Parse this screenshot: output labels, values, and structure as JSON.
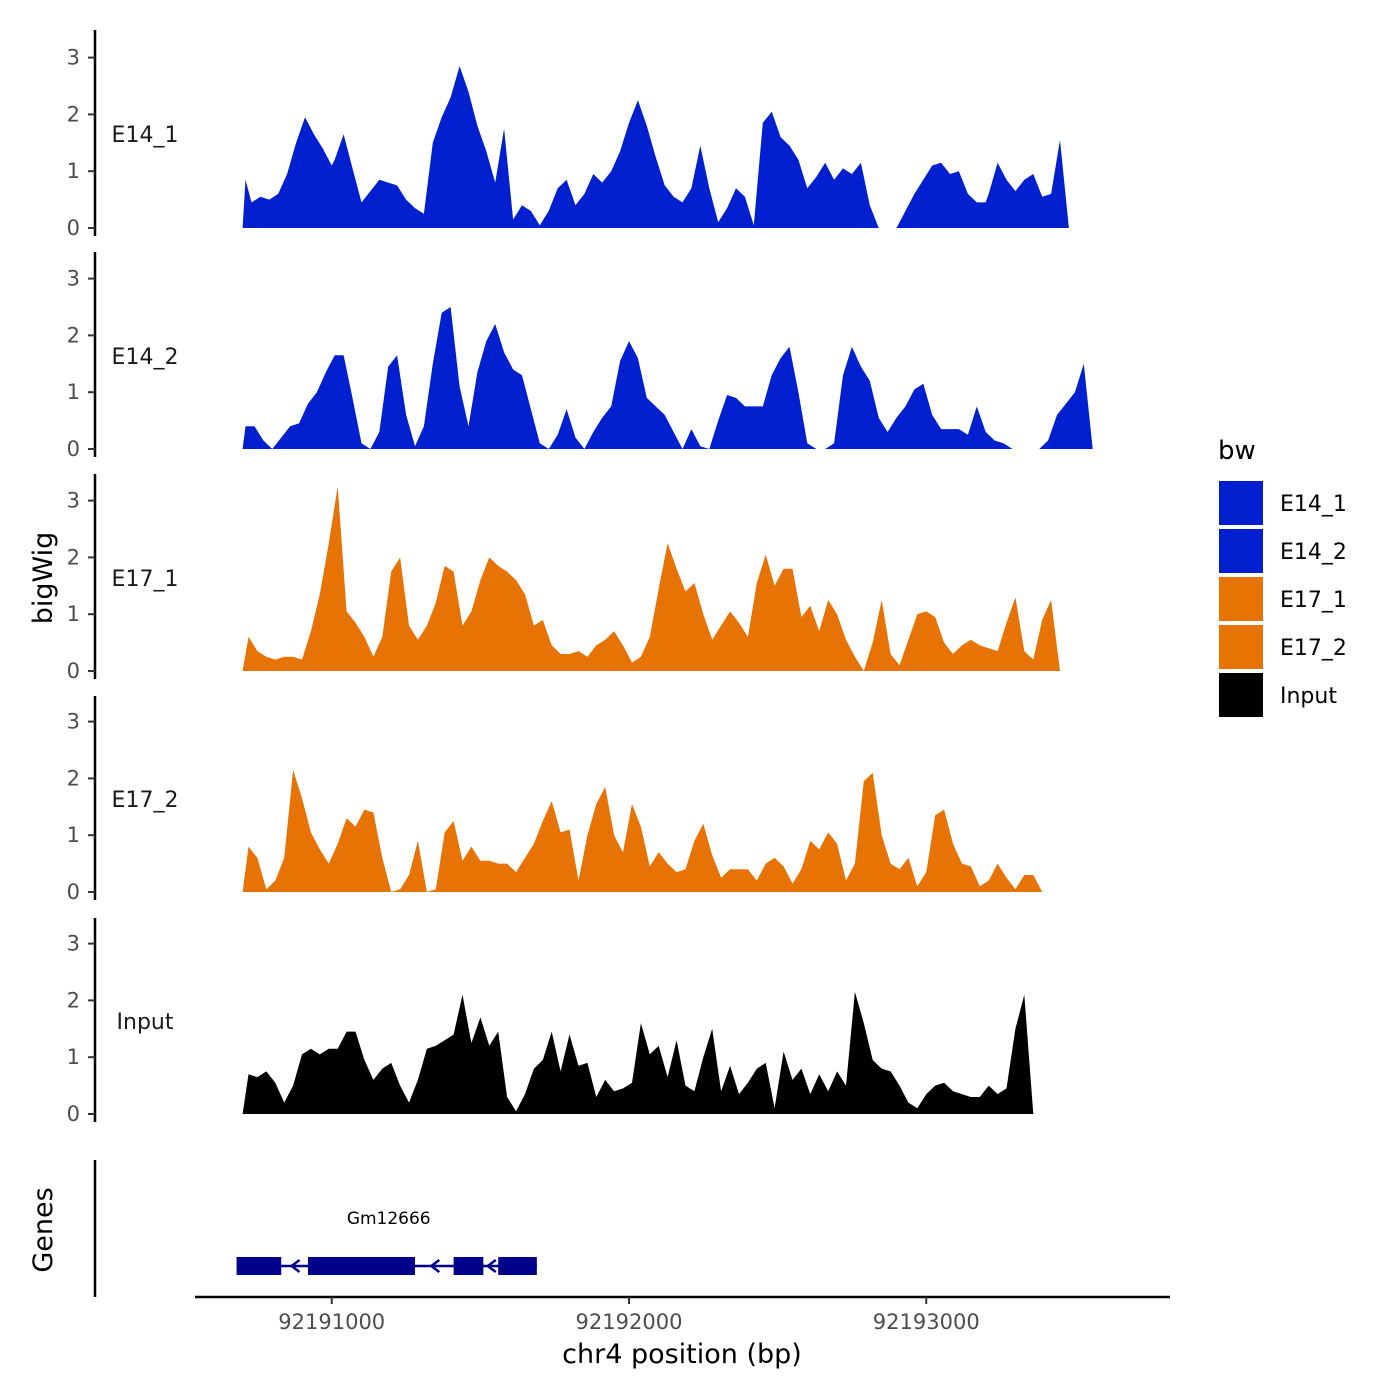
{
  "chart_data": {
    "type": "area",
    "ylabel": "bigWig",
    "xlabel": "chr4 position (bp)",
    "genes_label": "Genes",
    "ylim": [
      0,
      3.4
    ],
    "yticks": [
      0,
      1,
      2,
      3
    ],
    "xlim": [
      92190540,
      92193820
    ],
    "xticks": [
      92191000,
      92192000,
      92193000
    ],
    "xtick_labels": [
      "92191000",
      "92192000",
      "92193000"
    ],
    "legend": {
      "title": "bw",
      "position": "right",
      "entries": [
        {
          "label": "E14_1",
          "color": "#0020CF"
        },
        {
          "label": "E14_2",
          "color": "#0020CF"
        },
        {
          "label": "E17_1",
          "color": "#E87305"
        },
        {
          "label": "E17_2",
          "color": "#E87305"
        },
        {
          "label": "Input",
          "color": "#000000"
        }
      ]
    },
    "series": [
      {
        "name": "E14_1",
        "color": "#0020CF",
        "x": [
          92190700,
          92190710,
          92190730,
          92190760,
          92190790,
          92190820,
          92190850,
          92190880,
          92190910,
          92190940,
          92190970,
          92191000,
          92191010,
          92191040,
          92191070,
          92191100,
          92191130,
          92191160,
          92191190,
          92191220,
          92191250,
          92191280,
          92191310,
          92191340,
          92191370,
          92191400,
          92191430,
          92191460,
          92191490,
          92191520,
          92191550,
          92191580,
          92191610,
          92191640,
          92191670,
          92191700,
          92191730,
          92191760,
          92191790,
          92191820,
          92191850,
          92191880,
          92191910,
          92191940,
          92191970,
          92192000,
          92192030,
          92192060,
          92192090,
          92192120,
          92192150,
          92192180,
          92192210,
          92192240,
          92192270,
          92192300,
          92192330,
          92192360,
          92192390,
          92192420,
          92192450,
          92192480,
          92192510,
          92192540,
          92192570,
          92192600,
          92192630,
          92192660,
          92192690,
          92192720,
          92192750,
          92192780,
          92192810,
          92192840,
          92192870,
          92192900,
          92192930,
          92192960,
          92192990,
          92193020,
          92193050,
          92193080,
          92193110,
          92193140,
          92193170,
          92193200,
          92193210,
          92193240,
          92193270,
          92193300,
          92193330,
          92193360,
          92193390,
          92193420,
          92193450,
          92193480,
          92193510,
          92193540,
          92193570,
          92193600,
          92193630,
          92193660,
          92193690,
          92193700
        ],
        "values": [
          0,
          0.85,
          0.45,
          0.55,
          0.5,
          0.6,
          0.95,
          1.5,
          1.95,
          1.65,
          1.4,
          1.1,
          1.2,
          1.65,
          1.05,
          0.45,
          0.65,
          0.85,
          0.8,
          0.75,
          0.5,
          0.35,
          0.25,
          1.5,
          1.95,
          2.3,
          2.85,
          2.4,
          1.8,
          1.35,
          0.8,
          1.75,
          0.15,
          0.4,
          0.3,
          0.05,
          0.3,
          0.7,
          0.85,
          0.4,
          0.6,
          0.95,
          0.8,
          1.0,
          1.35,
          1.85,
          2.25,
          1.8,
          1.25,
          0.75,
          0.55,
          0.45,
          0.7,
          1.45,
          0.7,
          0.1,
          0.35,
          0.7,
          0.55,
          0.05,
          1.85,
          2.05,
          1.6,
          1.45,
          1.2,
          0.7,
          0.9,
          1.15,
          0.85,
          1.05,
          0.95,
          1.15,
          0.4,
          0,
          0,
          0,
          0.3,
          0.6,
          0.85,
          1.1,
          1.15,
          0.95,
          1.0,
          0.6,
          0.45,
          0.45,
          0.6,
          1.15,
          0.85,
          0.65,
          0.85,
          0.95,
          0.55,
          0.6,
          1.55,
          0,
          0,
          0,
          0,
          0,
          0,
          0,
          0,
          0
        ]
      },
      {
        "name": "E14_2",
        "color": "#0020CF",
        "x": [
          92190700,
          92190710,
          92190740,
          92190770,
          92190800,
          92190830,
          92190860,
          92190890,
          92190920,
          92190950,
          92190980,
          92191010,
          92191040,
          92191070,
          92191100,
          92191130,
          92191160,
          92191190,
          92191220,
          92191250,
          92191280,
          92191310,
          92191340,
          92191370,
          92191400,
          92191430,
          92191460,
          92191490,
          92191520,
          92191550,
          92191580,
          92191610,
          92191640,
          92191670,
          92191700,
          92191730,
          92191760,
          92191790,
          92191820,
          92191850,
          92191880,
          92191910,
          92191940,
          92191970,
          92192000,
          92192030,
          92192060,
          92192090,
          92192120,
          92192150,
          92192180,
          92192210,
          92192240,
          92192270,
          92192300,
          92192330,
          92192360,
          92192390,
          92192420,
          92192450,
          92192480,
          92192510,
          92192540,
          92192570,
          92192600,
          92192630,
          92192660,
          92192690,
          92192720,
          92192750,
          92192780,
          92192810,
          92192840,
          92192870,
          92192900,
          92192930,
          92192960,
          92192990,
          92193020,
          92193050,
          92193080,
          92193110,
          92193140,
          92193170,
          92193200,
          92193230,
          92193260,
          92193290,
          92193320,
          92193350,
          92193380,
          92193410,
          92193440,
          92193470,
          92193500,
          92193530,
          92193560,
          92193590,
          92193620,
          92193650,
          92193680,
          92193700
        ],
        "values": [
          0,
          0.4,
          0.4,
          0.15,
          0,
          0.2,
          0.4,
          0.45,
          0.8,
          1.0,
          1.35,
          1.65,
          1.65,
          0.9,
          0.1,
          0,
          0.3,
          1.45,
          1.65,
          0.6,
          0.05,
          0.4,
          1.5,
          2.4,
          2.5,
          1.1,
          0.4,
          1.35,
          1.9,
          2.2,
          1.7,
          1.4,
          1.3,
          0.7,
          0.1,
          0,
          0.25,
          0.7,
          0.2,
          0,
          0.3,
          0.55,
          0.75,
          1.55,
          1.9,
          1.6,
          0.9,
          0.75,
          0.6,
          0.3,
          0,
          0.35,
          0.05,
          0,
          0.5,
          0.95,
          0.9,
          0.75,
          0.75,
          0.75,
          1.3,
          1.6,
          1.8,
          1.0,
          0.1,
          0,
          0,
          0.1,
          1.3,
          1.8,
          1.45,
          1.2,
          0.55,
          0.3,
          0.55,
          0.75,
          1.05,
          1.15,
          0.6,
          0.35,
          0.35,
          0.35,
          0.25,
          0.75,
          0.3,
          0.15,
          0.1,
          0,
          0,
          0,
          0,
          0.15,
          0.6,
          0.8,
          1.0,
          1.5,
          0,
          0,
          0,
          0,
          0,
          0
        ]
      },
      {
        "name": "E17_1",
        "color": "#E87305",
        "x": [
          92190700,
          92190720,
          92190750,
          92190780,
          92190810,
          92190840,
          92190870,
          92190900,
          92190930,
          92190960,
          92190990,
          92191020,
          92191050,
          92191080,
          92191110,
          92191140,
          92191170,
          92191200,
          92191230,
          92191260,
          92191290,
          92191320,
          92191350,
          92191380,
          92191410,
          92191440,
          92191470,
          92191500,
          92191530,
          92191560,
          92191590,
          92191620,
          92191650,
          92191680,
          92191710,
          92191740,
          92191770,
          92191800,
          92191830,
          92191860,
          92191890,
          92191920,
          92191950,
          92191980,
          92192010,
          92192040,
          92192070,
          92192100,
          92192130,
          92192160,
          92192190,
          92192220,
          92192250,
          92192280,
          92192310,
          92192340,
          92192370,
          92192400,
          92192430,
          92192460,
          92192490,
          92192520,
          92192550,
          92192580,
          92192610,
          92192640,
          92192670,
          92192700,
          92192730,
          92192760,
          92192790,
          92192820,
          92192850,
          92192880,
          92192910,
          92192940,
          92192970,
          92193000,
          92193030,
          92193060,
          92193090,
          92193120,
          92193150,
          92193180,
          92193210,
          92193240,
          92193270,
          92193300,
          92193330,
          92193360,
          92193390,
          92193420,
          92193450,
          92193480,
          92193510,
          92193540,
          92193570,
          92193600,
          92193630,
          92193660,
          92193690,
          92193700
        ],
        "values": [
          0,
          0.6,
          0.35,
          0.25,
          0.2,
          0.25,
          0.25,
          0.2,
          0.7,
          1.35,
          2.25,
          3.25,
          1.05,
          0.85,
          0.6,
          0.25,
          0.6,
          1.75,
          2.0,
          0.8,
          0.55,
          0.8,
          1.2,
          1.85,
          1.75,
          0.8,
          1.05,
          1.6,
          2.0,
          1.85,
          1.75,
          1.6,
          1.35,
          0.8,
          0.9,
          0.45,
          0.3,
          0.3,
          0.35,
          0.25,
          0.45,
          0.55,
          0.7,
          0.45,
          0.15,
          0.25,
          0.6,
          1.45,
          2.25,
          1.8,
          1.4,
          1.55,
          1.0,
          0.55,
          0.8,
          1.05,
          0.85,
          0.6,
          1.55,
          2.05,
          1.5,
          1.8,
          1.8,
          0.95,
          1.15,
          0.7,
          1.25,
          1.0,
          0.55,
          0.25,
          0,
          0.5,
          1.25,
          0.3,
          0.1,
          0.55,
          1.0,
          1.05,
          0.95,
          0.5,
          0.3,
          0.45,
          0.55,
          0.45,
          0.4,
          0.35,
          0.85,
          1.3,
          0.35,
          0.2,
          0.9,
          1.25,
          0,
          0,
          0,
          0,
          0,
          0,
          0,
          0,
          0,
          0
        ]
      },
      {
        "name": "E17_2",
        "color": "#E87305",
        "x": [
          92190700,
          92190720,
          92190750,
          92190780,
          92190810,
          92190840,
          92190870,
          92190900,
          92190930,
          92190960,
          92190990,
          92191020,
          92191050,
          92191080,
          92191110,
          92191140,
          92191170,
          92191200,
          92191230,
          92191260,
          92191290,
          92191320,
          92191350,
          92191380,
          92191410,
          92191440,
          92191470,
          92191500,
          92191530,
          92191560,
          92191590,
          92191620,
          92191650,
          92191680,
          92191710,
          92191740,
          92191770,
          92191800,
          92191830,
          92191860,
          92191890,
          92191920,
          92191950,
          92191980,
          92192010,
          92192040,
          92192070,
          92192100,
          92192130,
          92192160,
          92192190,
          92192220,
          92192250,
          92192280,
          92192310,
          92192340,
          92192370,
          92192400,
          92192430,
          92192460,
          92192490,
          92192520,
          92192550,
          92192580,
          92192610,
          92192640,
          92192670,
          92192700,
          92192730,
          92192760,
          92192790,
          92192820,
          92192850,
          92192880,
          92192910,
          92192940,
          92192970,
          92193000,
          92193030,
          92193060,
          92193090,
          92193120,
          92193150,
          92193180,
          92193210,
          92193240,
          92193270,
          92193300,
          92193330,
          92193360,
          92193390,
          92193420,
          92193450,
          92193480,
          92193510,
          92193540,
          92193570,
          92193600,
          92193630,
          92193660,
          92193690,
          92193700
        ],
        "values": [
          0,
          0.8,
          0.6,
          0.05,
          0.2,
          0.6,
          2.15,
          1.65,
          1.05,
          0.75,
          0.5,
          0.85,
          1.3,
          1.15,
          1.45,
          1.4,
          0.6,
          0,
          0.05,
          0.3,
          0.9,
          0,
          0.05,
          1.05,
          1.25,
          0.55,
          0.8,
          0.55,
          0.55,
          0.5,
          0.5,
          0.35,
          0.6,
          0.85,
          1.25,
          1.6,
          1.05,
          1.1,
          0.2,
          1.0,
          1.55,
          1.85,
          1.0,
          0.7,
          1.55,
          1.15,
          0.45,
          0.7,
          0.5,
          0.35,
          0.4,
          0.9,
          1.2,
          0.65,
          0.25,
          0.4,
          0.4,
          0.4,
          0.2,
          0.5,
          0.6,
          0.45,
          0.15,
          0.4,
          0.9,
          0.75,
          1.05,
          0.85,
          0.2,
          0.5,
          1.95,
          2.1,
          1.0,
          0.5,
          0.4,
          0.6,
          0.1,
          0.35,
          1.35,
          1.45,
          0.85,
          0.5,
          0.45,
          0.1,
          0.2,
          0.5,
          0.25,
          0.05,
          0.3,
          0.3,
          0,
          0,
          0,
          0,
          0,
          0,
          0,
          0,
          0,
          0,
          0,
          0
        ]
      },
      {
        "name": "Input",
        "color": "#000000",
        "x": [
          92190700,
          92190720,
          92190750,
          92190780,
          92190810,
          92190840,
          92190870,
          92190900,
          92190930,
          92190960,
          92190990,
          92191020,
          92191050,
          92191080,
          92191110,
          92191140,
          92191170,
          92191200,
          92191230,
          92191260,
          92191290,
          92191320,
          92191350,
          92191380,
          92191410,
          92191440,
          92191470,
          92191500,
          92191530,
          92191560,
          92191590,
          92191620,
          92191650,
          92191680,
          92191710,
          92191740,
          92191770,
          92191800,
          92191830,
          92191860,
          92191890,
          92191920,
          92191950,
          92191980,
          92192010,
          92192040,
          92192070,
          92192100,
          92192130,
          92192160,
          92192190,
          92192220,
          92192250,
          92192280,
          92192310,
          92192340,
          92192370,
          92192400,
          92192430,
          92192460,
          92192490,
          92192520,
          92192550,
          92192580,
          92192610,
          92192640,
          92192670,
          92192700,
          92192730,
          92192760,
          92192790,
          92192820,
          92192850,
          92192880,
          92192910,
          92192940,
          92192970,
          92193000,
          92193030,
          92193060,
          92193090,
          92193120,
          92193150,
          92193180,
          92193210,
          92193240,
          92193270,
          92193300,
          92193330,
          92193360,
          92193390,
          92193420,
          92193450,
          92193480,
          92193510,
          92193540,
          92193570,
          92193600,
          92193630,
          92193660,
          92193690,
          92193700
        ],
        "values": [
          0,
          0.7,
          0.65,
          0.75,
          0.55,
          0.2,
          0.5,
          1.05,
          1.15,
          1.05,
          1.15,
          1.15,
          1.45,
          1.45,
          0.95,
          0.6,
          0.8,
          0.9,
          0.5,
          0.2,
          0.6,
          1.15,
          1.2,
          1.3,
          1.4,
          2.1,
          1.25,
          1.7,
          1.2,
          1.45,
          0.3,
          0.05,
          0.35,
          0.8,
          0.95,
          1.45,
          0.75,
          1.4,
          0.85,
          0.9,
          0.3,
          0.6,
          0.4,
          0.45,
          0.55,
          1.6,
          1.05,
          1.2,
          0.65,
          1.3,
          0.5,
          0.4,
          1.0,
          1.5,
          0.4,
          0.85,
          0.35,
          0.55,
          0.8,
          0.9,
          0.1,
          1.1,
          0.6,
          0.8,
          0.35,
          0.7,
          0.4,
          0.75,
          0.5,
          2.15,
          1.6,
          0.95,
          0.8,
          0.75,
          0.5,
          0.2,
          0.1,
          0.35,
          0.5,
          0.55,
          0.4,
          0.35,
          0.3,
          0.3,
          0.5,
          0.35,
          0.45,
          1.5,
          2.1,
          0,
          0,
          0,
          0,
          0,
          0,
          0,
          0,
          0,
          0,
          0,
          0,
          0
        ]
      }
    ],
    "genes": [
      {
        "name": "Gm12666",
        "strand": "-",
        "start": 92190680,
        "end": 92191690,
        "exons": [
          [
            92190680,
            92190830
          ],
          [
            92190920,
            92191280
          ],
          [
            92191410,
            92191510
          ],
          [
            92191560,
            92191690
          ]
        ]
      }
    ]
  }
}
